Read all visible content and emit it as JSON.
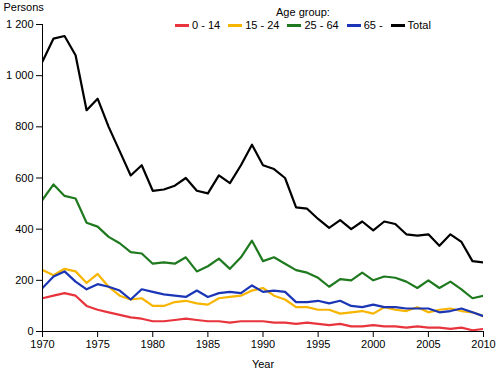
{
  "chart_data": {
    "type": "line",
    "x_label": "Year",
    "y_label": "Persons",
    "legend_title": "Age group:",
    "legend": "top",
    "grid": false,
    "x": [
      1970,
      1971,
      1972,
      1973,
      1974,
      1975,
      1976,
      1977,
      1978,
      1979,
      1980,
      1981,
      1982,
      1983,
      1984,
      1985,
      1986,
      1987,
      1988,
      1989,
      1990,
      1991,
      1992,
      1993,
      1994,
      1995,
      1996,
      1997,
      1998,
      1999,
      2000,
      2001,
      2002,
      2003,
      2004,
      2005,
      2006,
      2007,
      2008,
      2009,
      2010
    ],
    "xlim": [
      1970,
      2010
    ],
    "xticks": [
      1970,
      1975,
      1980,
      1985,
      1990,
      1995,
      2000,
      2005,
      2010
    ],
    "ylim": [
      0,
      1200
    ],
    "yticks": [
      0,
      200,
      400,
      600,
      800,
      {
        "value": 1000,
        "label": "1 000"
      },
      {
        "value": 1200,
        "label": "1 200"
      }
    ],
    "series": [
      {
        "name": "0 - 14",
        "color": "#e8343c",
        "values": [
          130,
          140,
          150,
          140,
          100,
          85,
          75,
          65,
          55,
          50,
          40,
          40,
          45,
          50,
          45,
          40,
          40,
          35,
          40,
          40,
          40,
          35,
          35,
          30,
          35,
          30,
          25,
          30,
          20,
          20,
          25,
          20,
          20,
          15,
          20,
          15,
          15,
          10,
          15,
          5,
          10
        ]
      },
      {
        "name": "15 - 24",
        "color": "#f7b500",
        "values": [
          240,
          220,
          245,
          235,
          190,
          225,
          175,
          140,
          125,
          130,
          100,
          100,
          115,
          120,
          110,
          105,
          130,
          135,
          140,
          160,
          170,
          140,
          125,
          95,
          95,
          85,
          85,
          70,
          75,
          80,
          70,
          95,
          85,
          80,
          95,
          75,
          85,
          90,
          80,
          75,
          60
        ]
      },
      {
        "name": "25 - 64",
        "color": "#1f7a1f",
        "values": [
          515,
          575,
          530,
          520,
          425,
          410,
          370,
          345,
          310,
          305,
          265,
          270,
          265,
          290,
          235,
          255,
          285,
          245,
          290,
          355,
          275,
          290,
          265,
          240,
          230,
          210,
          175,
          205,
          200,
          230,
          200,
          215,
          210,
          195,
          170,
          200,
          170,
          195,
          165,
          130,
          140
        ]
      },
      {
        "name": "65 -",
        "color": "#1a35b5",
        "values": [
          170,
          215,
          235,
          195,
          165,
          185,
          175,
          160,
          125,
          165,
          155,
          145,
          140,
          135,
          160,
          135,
          150,
          155,
          150,
          180,
          155,
          160,
          155,
          115,
          115,
          120,
          110,
          120,
          100,
          95,
          105,
          95,
          95,
          90,
          90,
          90,
          75,
          80,
          90,
          75,
          60
        ]
      },
      {
        "name": "Total",
        "color": "#000000",
        "values": [
          1055,
          1145,
          1155,
          1080,
          865,
          910,
          800,
          705,
          610,
          650,
          550,
          555,
          570,
          600,
          550,
          540,
          610,
          580,
          650,
          730,
          650,
          635,
          600,
          485,
          480,
          440,
          405,
          435,
          400,
          430,
          395,
          430,
          420,
          380,
          375,
          380,
          335,
          380,
          350,
          275,
          270
        ]
      }
    ]
  }
}
